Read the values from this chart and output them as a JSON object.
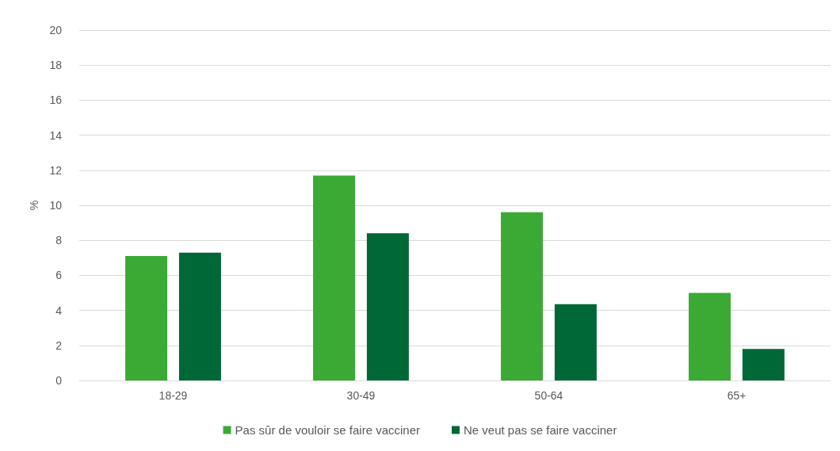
{
  "chart_data": {
    "type": "bar",
    "ylabel": "%",
    "categories": [
      "18-29",
      "30-49",
      "50-64",
      "65+"
    ],
    "series": [
      {
        "name": "Pas sûr de vouloir se faire vacciner",
        "color": "#3aaa35",
        "values": [
          7.1,
          11.7,
          9.6,
          5.0
        ]
      },
      {
        "name": "Ne veut pas se faire vacciner",
        "color": "#006837",
        "values": [
          7.3,
          8.4,
          4.35,
          1.8
        ]
      }
    ],
    "ylim": [
      0,
      20
    ],
    "yticks": [
      0,
      2,
      4,
      6,
      8,
      10,
      12,
      14,
      16,
      18,
      20
    ],
    "grid": "y",
    "legend": "bottom"
  }
}
